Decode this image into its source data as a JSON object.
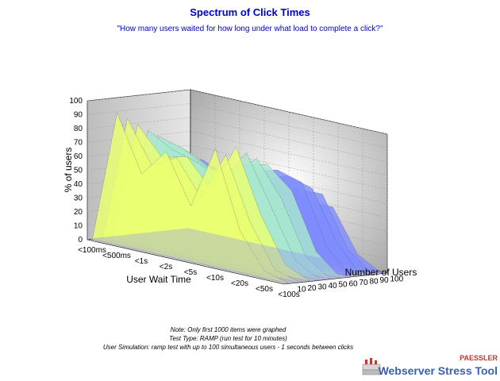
{
  "title": "Spectrum of Click Times",
  "subtitle": "\"How many users waited for how long under what load to complete a click?\"",
  "notes": [
    "Note: Only first 1000 items were graphed",
    "Test Type: RAMP (run test for 10 minutes)",
    "User Simulation: ramp test with up to 100 simultaneous users - 1 seconds between clicks"
  ],
  "brand": {
    "top": "PAESSLER",
    "main": "Webserver Stress Tool"
  },
  "chart_data": {
    "type": "area",
    "ylabel": "% of users",
    "xlabel": "User Wait Time",
    "zlabel": "Number of Users",
    "y_ticks": [
      "0",
      "10",
      "20",
      "30",
      "40",
      "50",
      "60",
      "70",
      "80",
      "90",
      "100"
    ],
    "x_categories": [
      "<100ms",
      "<500ms",
      "<1s",
      "<2s",
      "<5s",
      "<10s",
      "<20s",
      "<50s",
      "<100s"
    ],
    "z_categories": [
      "10",
      "20",
      "30",
      "40",
      "50",
      "60",
      "70",
      "80",
      "90",
      "100"
    ],
    "ylim": [
      0,
      100
    ],
    "grid": true,
    "series": [
      {
        "values": [
          0,
          95,
          55,
          75,
          40,
          85,
          30,
          5,
          0
        ]
      },
      {
        "values": [
          0,
          90,
          60,
          70,
          45,
          80,
          35,
          5,
          0
        ]
      },
      {
        "values": [
          0,
          85,
          65,
          70,
          50,
          85,
          40,
          8,
          0
        ]
      },
      {
        "values": [
          0,
          80,
          70,
          65,
          55,
          80,
          45,
          10,
          0
        ]
      },
      {
        "values": [
          0,
          75,
          70,
          60,
          60,
          75,
          50,
          12,
          0
        ]
      },
      {
        "values": [
          0,
          70,
          65,
          55,
          65,
          70,
          55,
          15,
          0
        ]
      },
      {
        "values": [
          0,
          60,
          60,
          50,
          60,
          65,
          60,
          18,
          0
        ]
      },
      {
        "values": [
          0,
          50,
          55,
          45,
          55,
          60,
          55,
          20,
          0
        ]
      },
      {
        "values": [
          0,
          40,
          50,
          40,
          50,
          50,
          50,
          15,
          0
        ]
      },
      {
        "values": [
          0,
          30,
          45,
          35,
          45,
          40,
          40,
          10,
          0
        ]
      }
    ],
    "colors": {
      "peak": "#eaff70",
      "mid": "#a8e8d0",
      "low": "#7f8cff",
      "floor": "#8b90f0"
    }
  }
}
